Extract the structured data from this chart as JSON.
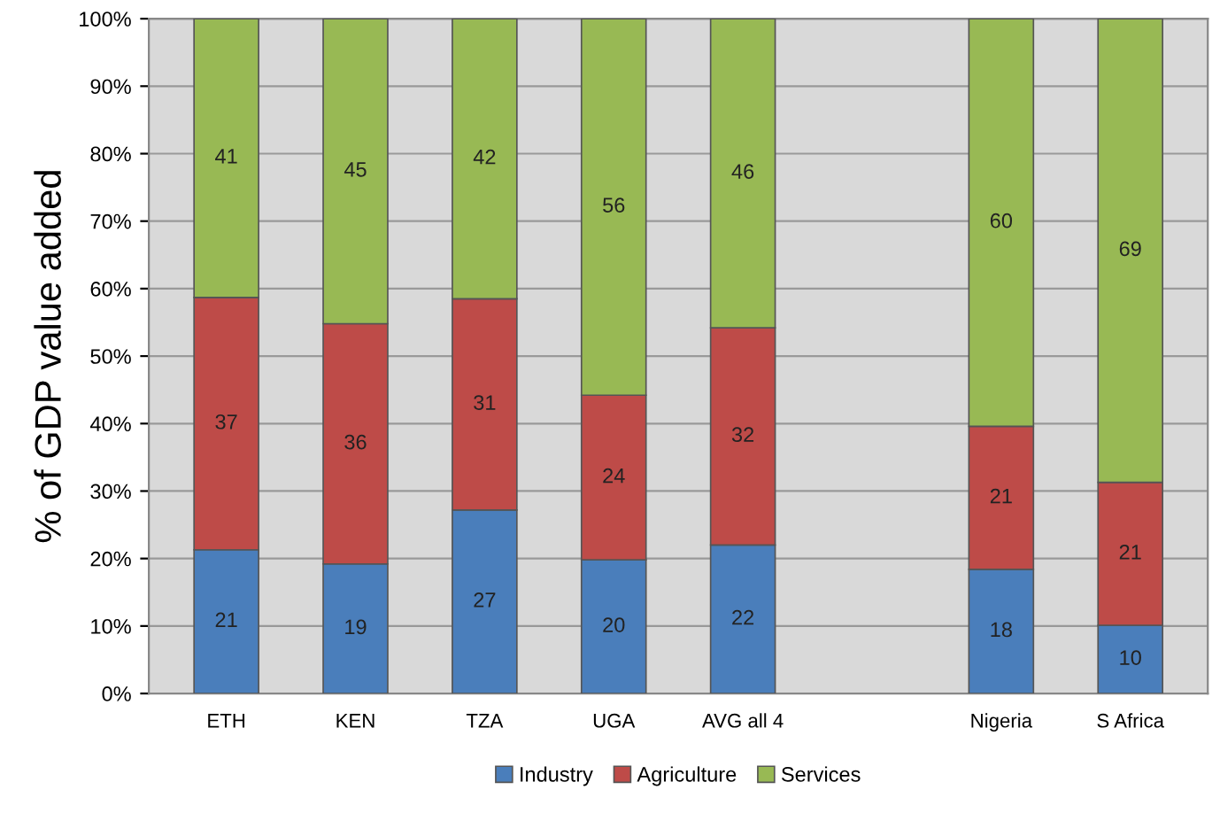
{
  "chart_data": {
    "type": "bar",
    "stacked": true,
    "ylabel": "% of GDP value added",
    "categories": [
      "ETH",
      "KEN",
      "TZA",
      "UGA",
      "AVG all 4",
      null,
      "Nigeria",
      "S Africa"
    ],
    "series": [
      {
        "name": "Industry",
        "color": "#4a7ebb",
        "values": [
          21.3,
          19.2,
          27.2,
          19.8,
          22.0,
          null,
          18.4,
          10.1
        ],
        "value_labels": [
          "21",
          "19",
          "27",
          "20",
          "22",
          null,
          "18",
          "10"
        ]
      },
      {
        "name": "Agriculture",
        "color": "#be4b48",
        "values": [
          37.4,
          35.6,
          31.3,
          24.4,
          32.2,
          null,
          21.2,
          21.2
        ],
        "value_labels": [
          "37",
          "36",
          "31",
          "24",
          "32",
          null,
          "21",
          "21"
        ]
      },
      {
        "name": "Services",
        "color": "#98b954",
        "values": [
          41.3,
          45.2,
          41.5,
          55.8,
          45.8,
          null,
          60.4,
          68.7
        ],
        "value_labels": [
          "41",
          "45",
          "42",
          "56",
          "46",
          null,
          "60",
          "69"
        ]
      }
    ],
    "ylim": [
      0,
      100
    ],
    "yticks": [
      {
        "value": 0,
        "label": "0%"
      },
      {
        "value": 10,
        "label": "10%"
      },
      {
        "value": 20,
        "label": "20%"
      },
      {
        "value": 30,
        "label": "30%"
      },
      {
        "value": 40,
        "label": "40%"
      },
      {
        "value": 50,
        "label": "50%"
      },
      {
        "value": 60,
        "label": "60%"
      },
      {
        "value": 70,
        "label": "70%"
      },
      {
        "value": 80,
        "label": "80%"
      },
      {
        "value": 90,
        "label": "90%"
      },
      {
        "value": 100,
        "label": "100%"
      }
    ],
    "grid": "y",
    "legend": "bottom"
  }
}
